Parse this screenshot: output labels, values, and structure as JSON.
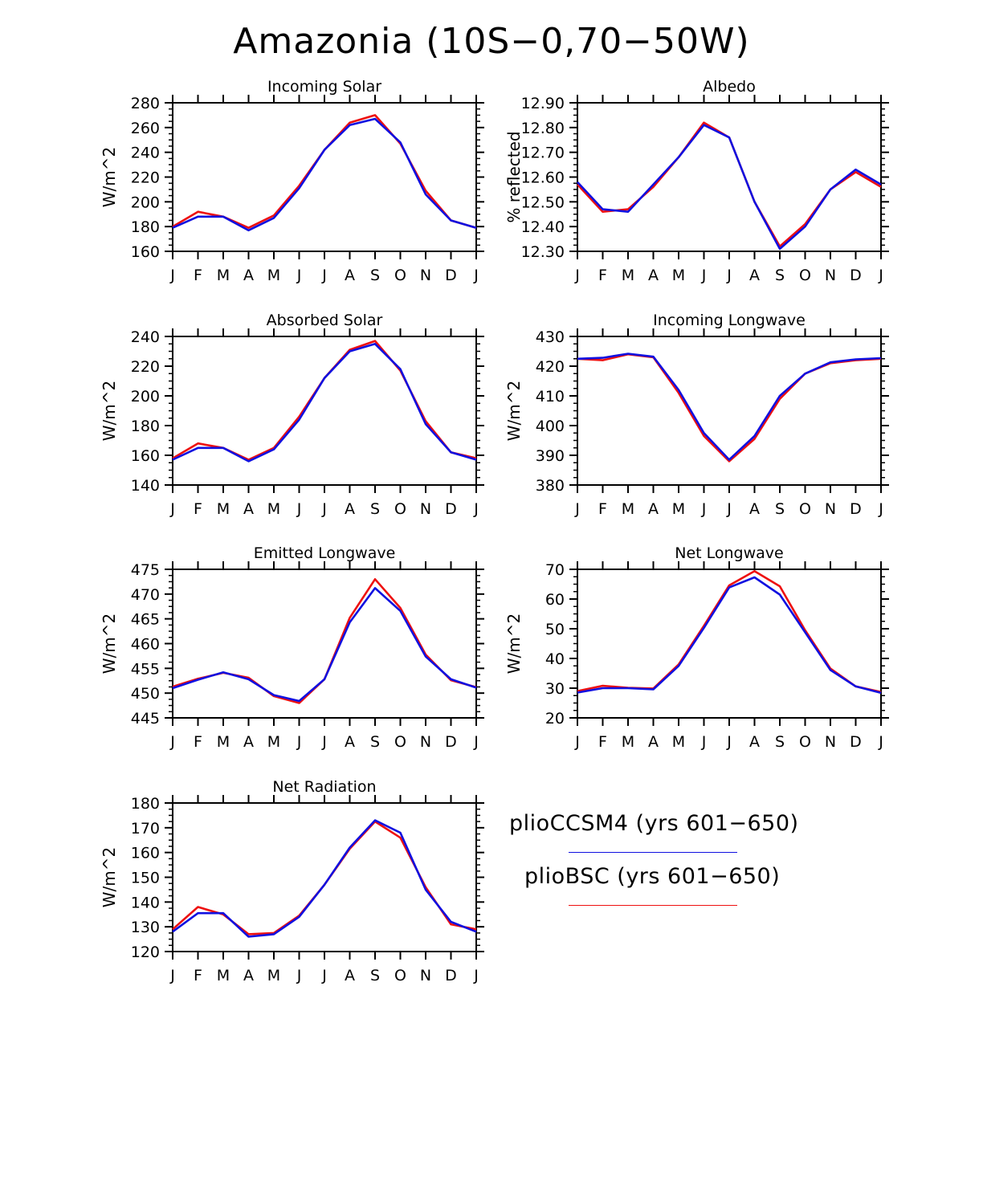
{
  "figure": {
    "title": "Amazonia (10S−0,70−50W)"
  },
  "colors": {
    "plioCCSM4": "#1010e0",
    "plioBSC": "#ee1010",
    "axis": "#000000"
  },
  "legend": [
    {
      "key": "plioCCSM4",
      "label": "plioCCSM4 (yrs 601−650)"
    },
    {
      "key": "plioBSC",
      "label": "plioBSC (yrs 601−650)"
    }
  ],
  "chart_data": [
    {
      "type": "line",
      "title": "Incoming Solar",
      "ylabel": "W/m^2",
      "categories": [
        "J",
        "F",
        "M",
        "A",
        "M",
        "J",
        "J",
        "A",
        "S",
        "O",
        "N",
        "D",
        "J"
      ],
      "ylim": [
        160,
        280
      ],
      "yticks": [
        "160",
        "180",
        "200",
        "220",
        "240",
        "260",
        "280"
      ],
      "series": [
        {
          "name": "plioBSC",
          "values": [
            180,
            192,
            188,
            179,
            189,
            213,
            242,
            264,
            270,
            247,
            209,
            185,
            179
          ]
        },
        {
          "name": "plioCCSM4",
          "values": [
            179,
            188,
            188,
            177,
            187,
            211,
            242,
            262,
            267,
            248,
            206,
            185,
            179
          ]
        }
      ]
    },
    {
      "type": "line",
      "title": "Albedo",
      "ylabel": "% reflected",
      "categories": [
        "J",
        "F",
        "M",
        "A",
        "M",
        "J",
        "J",
        "A",
        "S",
        "O",
        "N",
        "D",
        "J"
      ],
      "ylim": [
        12.3,
        12.9
      ],
      "yticks": [
        "12.30",
        "12.40",
        "12.50",
        "12.60",
        "12.70",
        "12.80",
        "12.90"
      ],
      "series": [
        {
          "name": "plioBSC",
          "values": [
            12.57,
            12.46,
            12.47,
            12.56,
            12.68,
            12.82,
            12.76,
            12.5,
            12.32,
            12.41,
            12.55,
            12.62,
            12.56
          ]
        },
        {
          "name": "plioCCSM4",
          "values": [
            12.58,
            12.47,
            12.46,
            12.57,
            12.68,
            12.81,
            12.76,
            12.5,
            12.31,
            12.4,
            12.55,
            12.63,
            12.57
          ]
        }
      ]
    },
    {
      "type": "line",
      "title": "Absorbed Solar",
      "ylabel": "W/m^2",
      "categories": [
        "J",
        "F",
        "M",
        "A",
        "M",
        "J",
        "J",
        "A",
        "S",
        "O",
        "N",
        "D",
        "J"
      ],
      "ylim": [
        140,
        240
      ],
      "yticks": [
        "140",
        "160",
        "180",
        "200",
        "220",
        "240"
      ],
      "series": [
        {
          "name": "plioBSC",
          "values": [
            158,
            168,
            165,
            157,
            165,
            186,
            212,
            231,
            237,
            217,
            183,
            162,
            158
          ]
        },
        {
          "name": "plioCCSM4",
          "values": [
            157,
            165,
            165,
            156,
            164,
            184,
            212,
            230,
            235,
            218,
            181,
            162,
            157
          ]
        }
      ]
    },
    {
      "type": "line",
      "title": "Incoming Longwave",
      "ylabel": "W/m^2",
      "categories": [
        "J",
        "F",
        "M",
        "A",
        "M",
        "J",
        "J",
        "A",
        "S",
        "O",
        "N",
        "D",
        "J"
      ],
      "ylim": [
        380,
        430
      ],
      "yticks": [
        "380",
        "390",
        "400",
        "410",
        "420",
        "430"
      ],
      "series": [
        {
          "name": "plioBSC",
          "values": [
            422.5,
            422.0,
            424.0,
            423.0,
            411.0,
            396.5,
            388.0,
            395.5,
            409.0,
            417.5,
            421.0,
            422.0,
            422.5
          ]
        },
        {
          "name": "plioCCSM4",
          "values": [
            422.5,
            422.8,
            424.2,
            423.2,
            412.0,
            397.5,
            388.5,
            396.5,
            410.0,
            417.5,
            421.3,
            422.3,
            422.7
          ]
        }
      ]
    },
    {
      "type": "line",
      "title": "Emitted Longwave",
      "ylabel": "W/m^2",
      "categories": [
        "J",
        "F",
        "M",
        "A",
        "M",
        "J",
        "J",
        "A",
        "S",
        "O",
        "N",
        "D",
        "J"
      ],
      "ylim": [
        445,
        475
      ],
      "yticks": [
        "445",
        "450",
        "455",
        "460",
        "465",
        "470",
        "475"
      ],
      "series": [
        {
          "name": "plioBSC",
          "values": [
            451.3,
            452.9,
            454.1,
            453.1,
            449.4,
            448.0,
            452.8,
            465.2,
            473.0,
            467.2,
            457.8,
            452.6,
            451.2
          ]
        },
        {
          "name": "plioCCSM4",
          "values": [
            451.0,
            452.7,
            454.2,
            452.8,
            449.6,
            448.4,
            452.8,
            464.3,
            471.2,
            466.6,
            457.4,
            452.8,
            451.1
          ]
        }
      ]
    },
    {
      "type": "line",
      "title": "Net Longwave",
      "ylabel": "W/m^2",
      "categories": [
        "J",
        "F",
        "M",
        "A",
        "M",
        "J",
        "J",
        "A",
        "S",
        "O",
        "N",
        "D",
        "J"
      ],
      "ylim": [
        20,
        70
      ],
      "yticks": [
        "20",
        "30",
        "40",
        "50",
        "60",
        "70"
      ],
      "series": [
        {
          "name": "plioBSC",
          "values": [
            29.0,
            30.8,
            30.1,
            29.9,
            38.0,
            51.0,
            64.6,
            69.4,
            64.3,
            49.5,
            36.6,
            30.6,
            28.7
          ]
        },
        {
          "name": "plioCCSM4",
          "values": [
            28.5,
            30.0,
            30.0,
            29.6,
            37.5,
            50.3,
            63.9,
            67.3,
            61.5,
            48.8,
            36.1,
            30.6,
            28.4
          ]
        }
      ]
    },
    {
      "type": "line",
      "title": "Net Radiation",
      "ylabel": "W/m^2",
      "categories": [
        "J",
        "F",
        "M",
        "A",
        "M",
        "J",
        "J",
        "A",
        "S",
        "O",
        "N",
        "D",
        "J"
      ],
      "ylim": [
        120,
        180
      ],
      "yticks": [
        "120",
        "130",
        "140",
        "150",
        "160",
        "170",
        "180"
      ],
      "series": [
        {
          "name": "plioBSC",
          "values": [
            129,
            138,
            135,
            127,
            127.5,
            134.5,
            147,
            161.5,
            172.5,
            166,
            146,
            131,
            129
          ]
        },
        {
          "name": "plioCCSM4",
          "values": [
            128,
            135.5,
            135.5,
            126,
            127,
            134,
            147,
            162,
            173,
            168,
            145,
            132,
            128
          ]
        }
      ]
    }
  ]
}
